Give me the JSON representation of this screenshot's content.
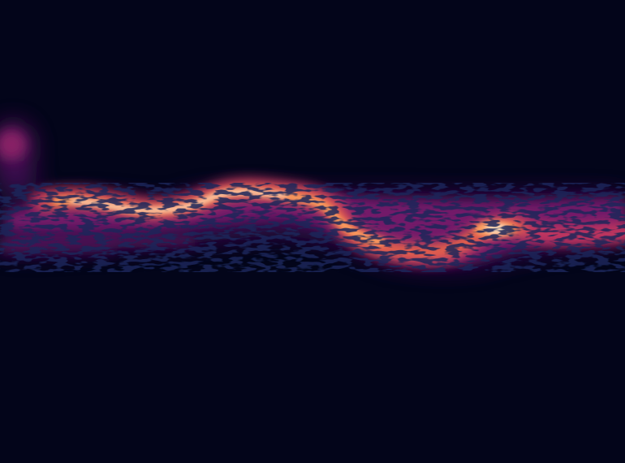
{
  "image": {
    "kind": "heatmap-like intensity streak on dark background",
    "colors": {
      "background": "#03051a",
      "low": "#3b0f4f",
      "mid_low": "#7a1d6d",
      "mid": "#c0365f",
      "mid_high": "#ef6a45",
      "high": "#fca25e",
      "peak": "#fde4c6"
    }
  }
}
